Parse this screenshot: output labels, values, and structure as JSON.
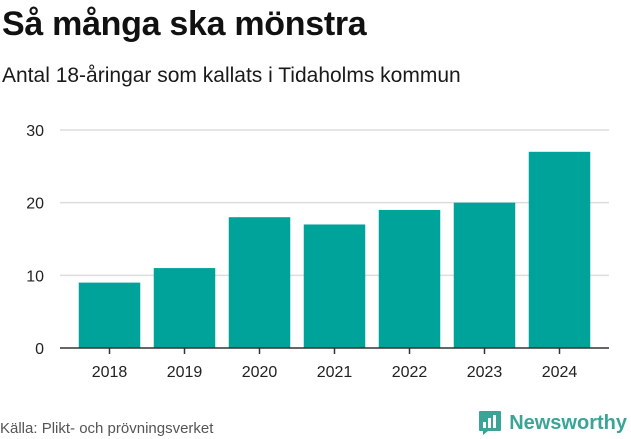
{
  "header": {
    "title": "Så många ska mönstra",
    "subtitle": "Antal 18-åringar som kallats i Tidaholms kommun"
  },
  "footer": {
    "source": "Källa: Plikt- och prövningsverket",
    "brand": "Newsworthy",
    "brand_icon": "bar-chart-speech-bubble-icon"
  },
  "colors": {
    "bar": "#00a39a",
    "grid": "#dddddd",
    "axis": "#333333",
    "brand": "#3aa597"
  },
  "chart_data": {
    "type": "bar",
    "title": "Så många ska mönstra",
    "subtitle": "Antal 18-åringar som kallats i Tidaholms kommun",
    "xlabel": "",
    "ylabel": "",
    "categories": [
      "2018",
      "2019",
      "2020",
      "2021",
      "2022",
      "2023",
      "2024"
    ],
    "values": [
      9,
      11,
      18,
      17,
      19,
      20,
      27
    ],
    "ylim": [
      0,
      30
    ],
    "yticks": [
      0,
      10,
      20,
      30
    ],
    "grid": true,
    "legend": "none"
  }
}
